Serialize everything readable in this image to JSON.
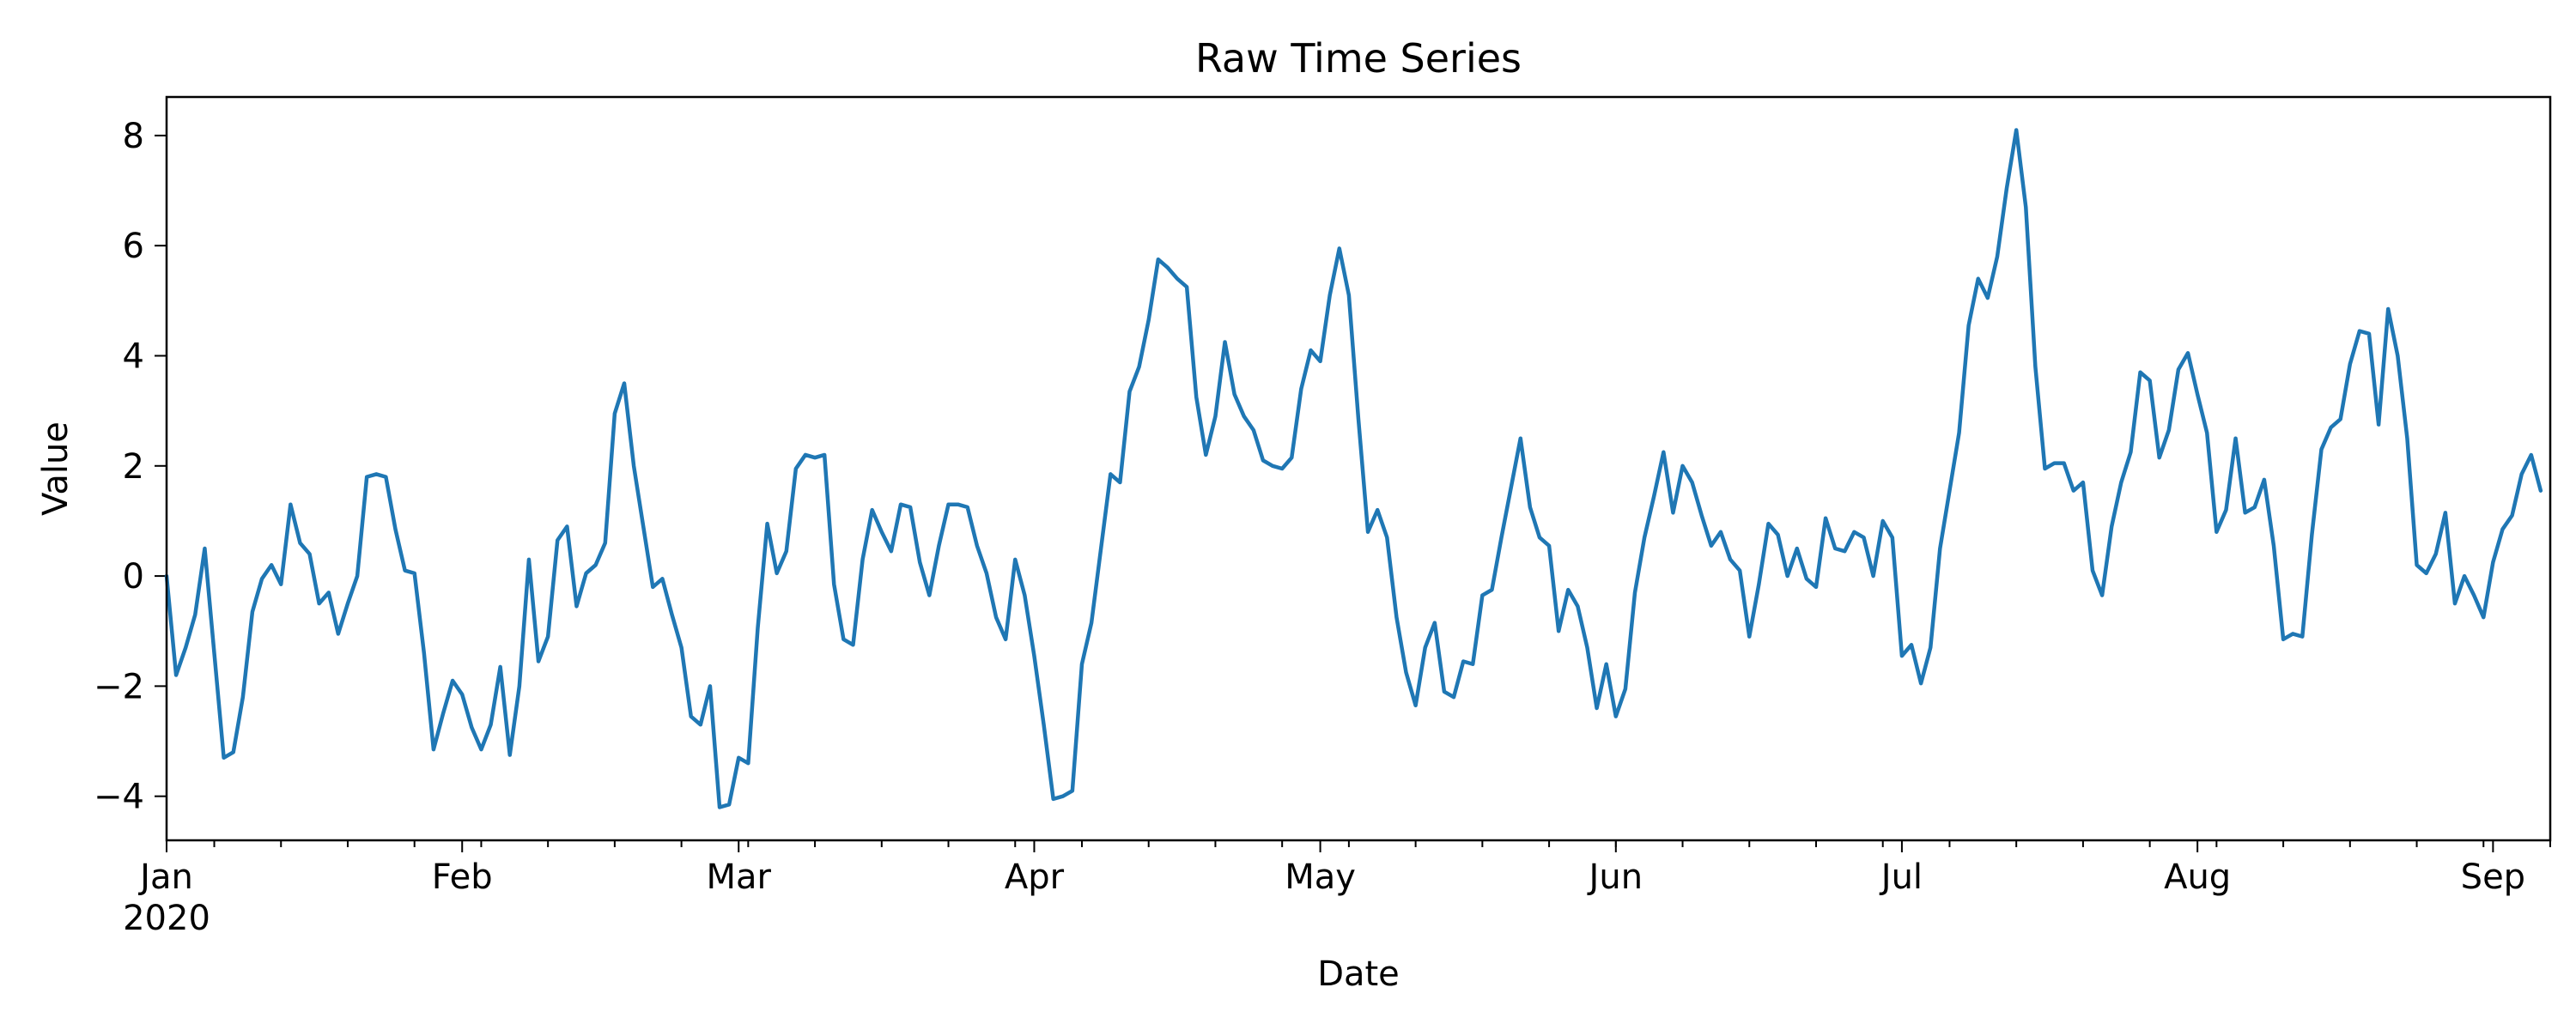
{
  "chart_data": {
    "type": "line",
    "title": "Raw Time Series",
    "xlabel": "Date",
    "ylabel": "Value",
    "x_start": "2020-01-01",
    "x_end": "2020-09-07",
    "ylim": [
      -4.8,
      8.7
    ],
    "grid": false,
    "line_color": "#1f77b4",
    "x_ticks": [
      {
        "date": "2020-01-01",
        "label": "Jan",
        "sublabel": "2020"
      },
      {
        "date": "2020-02-01",
        "label": "Feb"
      },
      {
        "date": "2020-03-01",
        "label": "Mar"
      },
      {
        "date": "2020-04-01",
        "label": "Apr"
      },
      {
        "date": "2020-05-01",
        "label": "May"
      },
      {
        "date": "2020-06-01",
        "label": "Jun"
      },
      {
        "date": "2020-07-01",
        "label": "Jul"
      },
      {
        "date": "2020-08-01",
        "label": "Aug"
      },
      {
        "date": "2020-09-01",
        "label": "Sep"
      }
    ],
    "x_minor_ticks": [
      "2020-01-06",
      "2020-01-13",
      "2020-01-20",
      "2020-01-27",
      "2020-02-03",
      "2020-02-10",
      "2020-02-17",
      "2020-02-24",
      "2020-03-02",
      "2020-03-09",
      "2020-03-16",
      "2020-03-23",
      "2020-03-30",
      "2020-04-06",
      "2020-04-13",
      "2020-04-20",
      "2020-04-27",
      "2020-05-04",
      "2020-05-11",
      "2020-05-18",
      "2020-05-25",
      "2020-06-01",
      "2020-06-08",
      "2020-06-15",
      "2020-06-22",
      "2020-06-29",
      "2020-07-06",
      "2020-07-13",
      "2020-07-20",
      "2020-07-27",
      "2020-08-03",
      "2020-08-10",
      "2020-08-17",
      "2020-08-24",
      "2020-08-31",
      "2020-09-07"
    ],
    "y_ticks": [
      -4,
      -2,
      0,
      2,
      4,
      6,
      8
    ],
    "series": [
      {
        "values": [
          0.0,
          -1.8,
          -1.3,
          -0.7,
          0.5,
          -1.4,
          -3.3,
          -3.2,
          -2.2,
          -0.65,
          -0.05,
          0.2,
          -0.15,
          1.3,
          0.6,
          0.4,
          -0.5,
          -0.3,
          -1.05,
          -0.5,
          0.0,
          1.8,
          1.85,
          1.8,
          0.85,
          0.1,
          0.05,
          -1.4,
          -3.15,
          -2.5,
          -1.9,
          -2.15,
          -2.75,
          -3.15,
          -2.7,
          -1.65,
          -3.25,
          -2.0,
          0.3,
          -1.55,
          -1.1,
          0.65,
          0.9,
          -0.55,
          0.05,
          0.2,
          0.6,
          2.95,
          3.5,
          2.0,
          0.9,
          -0.2,
          -0.05,
          -0.7,
          -1.3,
          -2.55,
          -2.7,
          -2.0,
          -4.2,
          -4.15,
          -3.3,
          -3.4,
          -0.95,
          0.95,
          0.05,
          0.45,
          1.95,
          2.2,
          2.15,
          2.2,
          -0.15,
          -1.15,
          -1.25,
          0.3,
          1.2,
          0.8,
          0.45,
          1.3,
          1.25,
          0.25,
          -0.35,
          0.55,
          1.3,
          1.3,
          1.25,
          0.55,
          0.05,
          -0.75,
          -1.15,
          0.3,
          -0.35,
          -1.45,
          -2.7,
          -4.05,
          -4.0,
          -3.9,
          -1.6,
          -0.85,
          0.5,
          1.85,
          1.7,
          3.35,
          3.8,
          4.65,
          5.75,
          5.6,
          5.4,
          5.25,
          3.25,
          2.2,
          2.9,
          4.25,
          3.3,
          2.9,
          2.65,
          2.1,
          2.0,
          1.95,
          2.15,
          3.4,
          4.1,
          3.9,
          5.1,
          5.95,
          5.1,
          2.85,
          0.8,
          1.2,
          0.7,
          -0.75,
          -1.75,
          -2.35,
          -1.3,
          -0.85,
          -2.1,
          -2.2,
          -1.55,
          -1.6,
          -0.35,
          -0.25,
          0.7,
          1.6,
          2.5,
          1.25,
          0.7,
          0.55,
          -1.0,
          -0.25,
          -0.55,
          -1.3,
          -2.4,
          -1.6,
          -2.55,
          -2.05,
          -0.3,
          0.7,
          1.45,
          2.25,
          1.15,
          2.0,
          1.7,
          1.1,
          0.55,
          0.8,
          0.3,
          0.1,
          -1.1,
          -0.15,
          0.95,
          0.75,
          0.0,
          0.5,
          -0.05,
          -0.2,
          1.05,
          0.5,
          0.45,
          0.8,
          0.7,
          0.0,
          1.0,
          0.7,
          -1.45,
          -1.25,
          -1.95,
          -1.3,
          0.5,
          1.55,
          2.6,
          4.55,
          5.4,
          5.05,
          5.8,
          7.05,
          8.1,
          6.7,
          3.8,
          1.95,
          2.05,
          2.05,
          1.55,
          1.7,
          0.1,
          -0.35,
          0.9,
          1.7,
          2.25,
          3.7,
          3.55,
          2.15,
          2.65,
          3.75,
          4.05,
          3.3,
          2.6,
          0.8,
          1.2,
          2.5,
          1.15,
          1.25,
          1.75,
          0.55,
          -1.15,
          -1.05,
          -1.1,
          0.75,
          2.3,
          2.7,
          2.85,
          3.85,
          4.45,
          4.4,
          2.75,
          4.85,
          4.0,
          2.5,
          0.2,
          0.05,
          0.4,
          1.15,
          -0.5,
          0.0,
          -0.35,
          -0.75,
          0.25,
          0.85,
          1.1,
          1.85,
          2.2,
          1.55
        ]
      }
    ]
  }
}
